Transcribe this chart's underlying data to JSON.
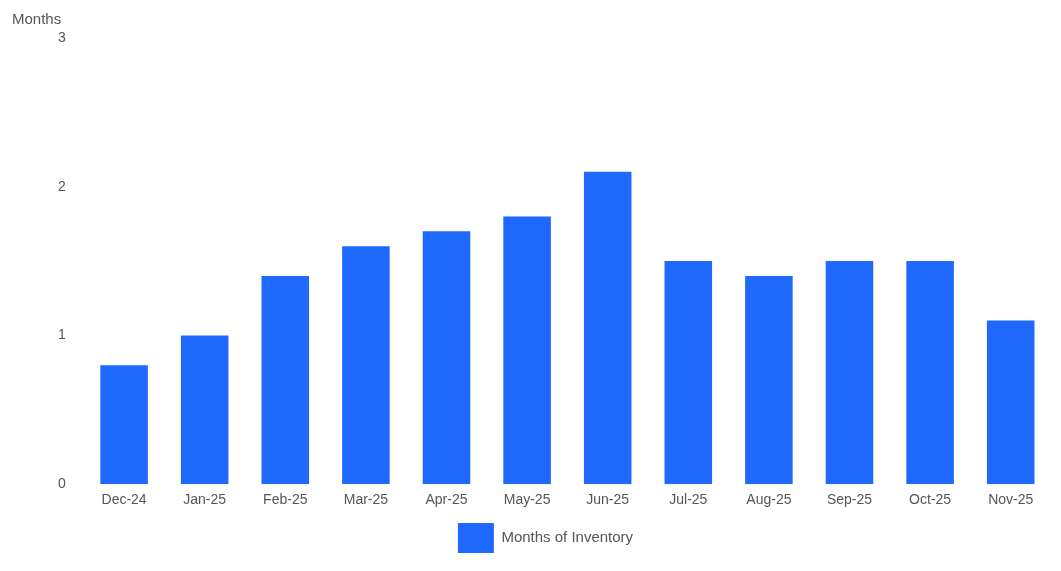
{
  "chart_data": {
    "type": "bar",
    "ylabel": "Months",
    "categories": [
      "Dec-24",
      "Jan-25",
      "Feb-25",
      "Mar-25",
      "Apr-25",
      "May-25",
      "Jun-25",
      "Jul-25",
      "Aug-25",
      "Sep-25",
      "Oct-25",
      "Nov-25"
    ],
    "series": [
      {
        "name": "Months of Inventory",
        "color": "#1f69ff",
        "values": [
          0.8,
          1.0,
          1.4,
          1.6,
          1.7,
          1.8,
          2.1,
          1.5,
          1.4,
          1.5,
          1.5,
          1.1
        ]
      }
    ],
    "ylim": [
      0,
      3
    ],
    "yticks": [
      0,
      1,
      2,
      3
    ],
    "legend": "bottom"
  }
}
